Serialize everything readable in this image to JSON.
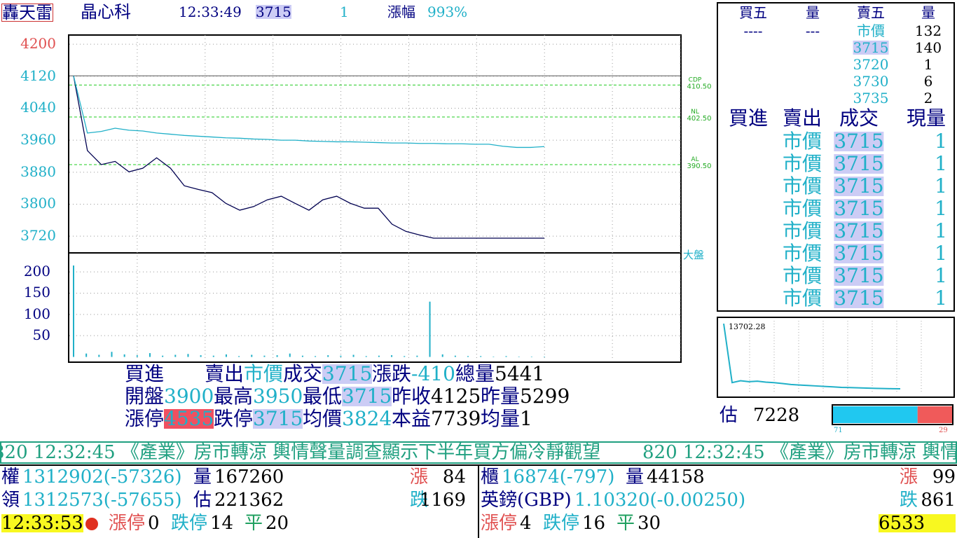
{
  "header": {
    "app": "轟天雷",
    "stock": "晶心科",
    "time": "12:33:49",
    "price": 3715,
    "qty": 1,
    "change_label": "漲幅",
    "change": "993%"
  },
  "price_chart": {
    "type": "line",
    "ylim": [
      3680,
      4223
    ],
    "yticks": [
      4200,
      4120,
      4040,
      3960,
      3880,
      3800,
      3720
    ],
    "series": [
      {
        "color": "#000050",
        "values": [
          4121,
          3934,
          3899,
          3907,
          3881,
          3890,
          3916,
          3890,
          3846,
          3837,
          3829,
          3802,
          3785,
          3794,
          3811,
          3820,
          3802,
          3785,
          3811,
          3820,
          3802,
          3790,
          3790,
          3750,
          3732,
          3723,
          3715,
          3715,
          3715,
          3715,
          3715,
          3715,
          3715,
          3715,
          3715
        ]
      },
      {
        "color": "#20b0c8",
        "values": [
          4121,
          3978,
          3982,
          3990,
          3985,
          3983,
          3978,
          3975,
          3972,
          3970,
          3968,
          3966,
          3965,
          3963,
          3962,
          3960,
          3960,
          3958,
          3957,
          3956,
          3956,
          3955,
          3954,
          3953,
          3953,
          3952,
          3952,
          3951,
          3951,
          3950,
          3950,
          3945,
          3942,
          3942,
          3944
        ]
      }
    ],
    "ref_lines": [
      {
        "name": "CDP",
        "label": "410.50",
        "value": 4098
      },
      {
        "name": "NL",
        "label": "402.50",
        "value": 4018
      },
      {
        "name": "AL",
        "label": "390.50",
        "value": 3899
      }
    ],
    "market_label": "大盤"
  },
  "volume_chart": {
    "type": "bar",
    "ylim": [
      -9,
      243
    ],
    "yticks": [
      200,
      150,
      100,
      50
    ],
    "color": "#20b0c8",
    "values": [
      215,
      8,
      5,
      12,
      6,
      4,
      9,
      3,
      5,
      7,
      4,
      3,
      6,
      2,
      5,
      3,
      4,
      8,
      3,
      2,
      4,
      3,
      5,
      2,
      3,
      4,
      2,
      3,
      130,
      6,
      3,
      2,
      2,
      1,
      2,
      1,
      1,
      1
    ]
  },
  "order_book": {
    "headers": [
      "買五",
      "量",
      "賣五",
      "量"
    ],
    "bids": [
      {
        "price": "----",
        "qty": "---"
      }
    ],
    "asks": [
      {
        "price": "市價",
        "qty": 132
      },
      {
        "price": 3715,
        "qty": 140
      },
      {
        "price": 3720,
        "qty": 1
      },
      {
        "price": 3730,
        "qty": 6
      },
      {
        "price": 3735,
        "qty": 2
      }
    ]
  },
  "trades": {
    "headers": [
      "買進",
      "賣出",
      "成交",
      "現量"
    ],
    "rows": [
      {
        "sell": "市價",
        "price": 3715,
        "qty": 1
      },
      {
        "sell": "市價",
        "price": 3715,
        "qty": 1
      },
      {
        "sell": "市價",
        "price": 3715,
        "qty": 1
      },
      {
        "sell": "市價",
        "price": 3715,
        "qty": 1
      },
      {
        "sell": "市價",
        "price": 3715,
        "qty": 1
      },
      {
        "sell": "市價",
        "price": 3715,
        "qty": 1
      },
      {
        "sell": "市價",
        "price": 3715,
        "qty": 1
      },
      {
        "sell": "市價",
        "price": 3715,
        "qty": 1
      }
    ]
  },
  "index_chart": {
    "type": "line",
    "label": "13702.28",
    "values": [
      13702,
      13080,
      13100,
      13090,
      13095,
      13085,
      13080,
      13070,
      13060,
      13055,
      13050,
      13045,
      13040,
      13035,
      13030,
      13028,
      13025,
      13022,
      13020,
      13018,
      13016,
      13015
    ]
  },
  "estimate": {
    "label": "估",
    "value": 7228,
    "up": 71,
    "down": 29
  },
  "quote": {
    "rows": [
      [
        {
          "label": "買進"
        },
        {
          "label": "賣出",
          "value": "市價"
        },
        {
          "label": "成交",
          "value": 3715
        },
        {
          "label": "漲跌",
          "value": -410
        },
        {
          "label": "總量",
          "value": 5441
        }
      ],
      [
        {
          "label": "開盤",
          "value": 3900
        },
        {
          "label": "最高",
          "value": 3950
        },
        {
          "label": "最低",
          "value": 3715
        },
        {
          "label": "昨收",
          "value": 4125
        },
        {
          "label": "昨量",
          "value": 5299
        }
      ],
      [
        {
          "label": "漲停",
          "value": 4535
        },
        {
          "label": "跌停",
          "value": 3715
        },
        {
          "label": "均價",
          "value": 3824
        },
        {
          "label": "本益",
          "value": 7739
        },
        {
          "label": "均量",
          "value": 1
        }
      ]
    ]
  },
  "ticker": "820 12:32:45 《產業》房市轉涼 輿情聲量調查顯示下半年買方偏冷靜觀望",
  "bottom": {
    "left": [
      [
        {
          "label": "權",
          "value": "1312902(-57326)"
        },
        {
          "label": "量",
          "value": 167260
        },
        {
          "label": "漲",
          "value": 84
        }
      ],
      [
        {
          "label": "領",
          "value": "1312573(-57655)"
        },
        {
          "label": "估",
          "value": 221362
        },
        {
          "label": "跌",
          "value": 1169
        }
      ],
      [
        {
          "value": "12:33:53"
        },
        {
          "label": "漲停",
          "value": 0
        },
        {
          "label": "跌停",
          "value": 14
        },
        {
          "label": "平",
          "value": 20
        }
      ]
    ],
    "right": [
      [
        {
          "label": "櫃",
          "value": "16874(-797)"
        },
        {
          "label": "量",
          "value": 44158
        },
        {
          "label": "漲",
          "value": 99
        }
      ],
      [
        {
          "label": "英鎊(GBP)",
          "value": "1.10320(-0.00250)"
        },
        {
          "label": "跌",
          "value": 861
        }
      ],
      [
        {
          "label": "漲停",
          "value": 4
        },
        {
          "label": "跌停",
          "value": 16
        },
        {
          "label": "平",
          "value": 30
        },
        {
          "value": 6533
        }
      ]
    ]
  }
}
